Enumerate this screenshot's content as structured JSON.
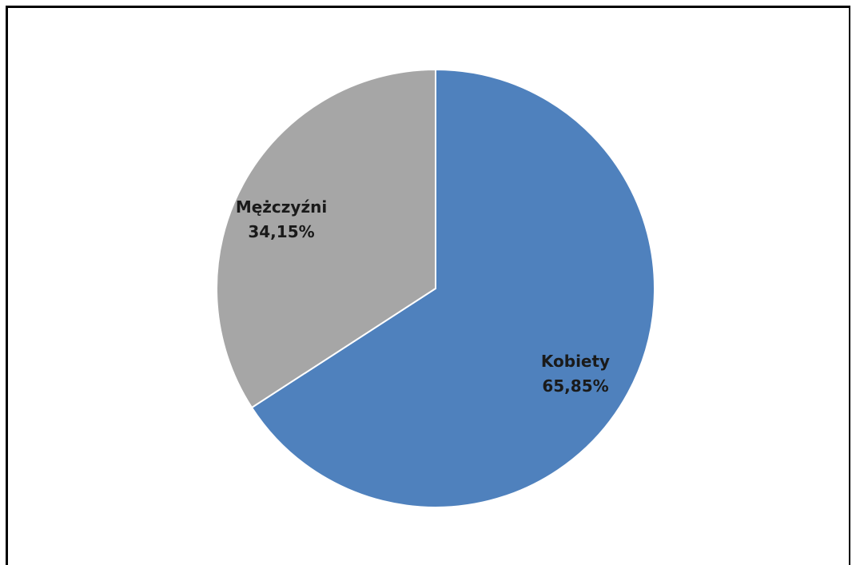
{
  "chart_data": {
    "type": "pie",
    "title": "",
    "legend": "none",
    "slices": [
      {
        "label": "Kobiety",
        "value": 65.85,
        "value_label": "65,85%",
        "color": "#4f81bd"
      },
      {
        "label": "Mężczyźni",
        "value": 34.15,
        "value_label": "34,15%",
        "color": "#a6a6a6"
      }
    ]
  }
}
